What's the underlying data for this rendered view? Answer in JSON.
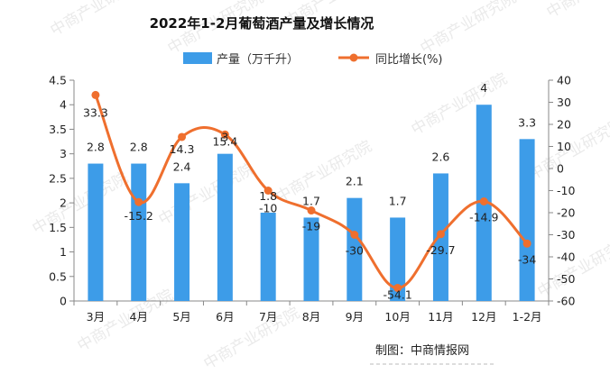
{
  "chart_data": {
    "type": "bar+line",
    "title": "2022年1-2月葡萄酒产量及增长情况",
    "categories": [
      "3月",
      "4月",
      "5月",
      "6月",
      "7月",
      "8月",
      "9月",
      "10月",
      "11月",
      "12月",
      "1-2月"
    ],
    "series": [
      {
        "name": "产量（万千升）",
        "type": "bar",
        "axis": "left",
        "color": "#3d9ce8",
        "values": [
          2.8,
          2.8,
          2.4,
          3,
          1.8,
          1.7,
          2.1,
          1.7,
          2.6,
          4,
          3.3
        ],
        "labels": [
          "2.8",
          "2.8",
          "2.4",
          "3",
          "1.8",
          "1.7",
          "2.1",
          "1.7",
          "2.6",
          "4",
          "3.3"
        ]
      },
      {
        "name": "同比增长(%)",
        "type": "line",
        "axis": "right",
        "color": "#ef6f2e",
        "values": [
          33.3,
          -15.2,
          14.3,
          15.4,
          -10,
          -19,
          -30,
          -54.1,
          -29.7,
          -14.9,
          -34
        ],
        "labels": [
          "33.3",
          "-15.2",
          "14.3",
          "15.4",
          "-10",
          "-19",
          "-30",
          "-54.1",
          "-29.7",
          "-14.9",
          "-34"
        ]
      }
    ],
    "y_left": {
      "min": 0,
      "max": 4.5,
      "ticks": [
        "0",
        "0.5",
        "1",
        "1.5",
        "2",
        "2.5",
        "3",
        "3.5",
        "4",
        "4.5"
      ]
    },
    "y_right": {
      "min": -60,
      "max": 40,
      "ticks": [
        "-60",
        "-50",
        "-40",
        "-30",
        "-20",
        "-10",
        "0",
        "10",
        "20",
        "30",
        "40"
      ]
    },
    "grid": false,
    "legend_position": "top-center",
    "source_note": "制图：中商情报网",
    "watermark": "中商产业研究院"
  }
}
